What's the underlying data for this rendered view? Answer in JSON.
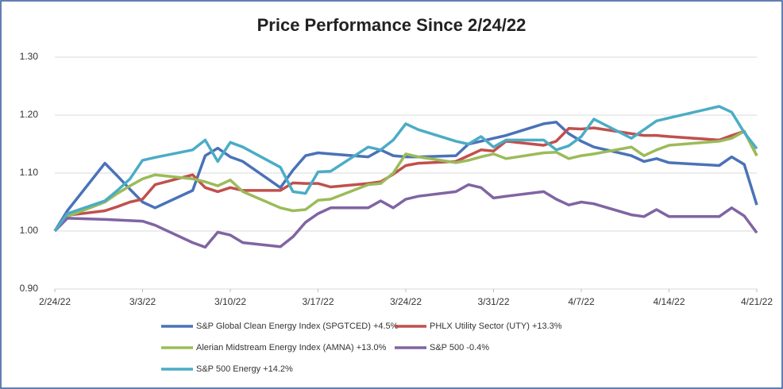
{
  "chart_data": {
    "type": "line",
    "title": "Price Performance Since 2/24/22",
    "x": [
      "2/24/22",
      "2/25/22",
      "2/28/22",
      "3/1/22",
      "3/2/22",
      "3/3/22",
      "3/4/22",
      "3/7/22",
      "3/8/22",
      "3/9/22",
      "3/10/22",
      "3/11/22",
      "3/14/22",
      "3/15/22",
      "3/16/22",
      "3/17/22",
      "3/18/22",
      "3/21/22",
      "3/22/22",
      "3/23/22",
      "3/24/22",
      "3/25/22",
      "3/28/22",
      "3/29/22",
      "3/30/22",
      "3/31/22",
      "4/1/22",
      "4/4/22",
      "4/5/22",
      "4/6/22",
      "4/7/22",
      "4/8/22",
      "4/11/22",
      "4/12/22",
      "4/13/22",
      "4/14/22",
      "4/18/22",
      "4/19/22",
      "4/20/22",
      "4/21/22"
    ],
    "xlim": [
      "2/24/22",
      "4/21/22"
    ],
    "xticks": [
      "2/24/22",
      "3/3/22",
      "3/10/22",
      "3/17/22",
      "3/24/22",
      "3/31/22",
      "4/7/22",
      "4/14/22",
      "4/21/22"
    ],
    "ylim": [
      0.9,
      1.3
    ],
    "yticks": [
      {
        "value": 0.9,
        "label": "0.90"
      },
      {
        "value": 1.0,
        "label": "1.00"
      },
      {
        "value": 1.1,
        "label": "1.10"
      },
      {
        "value": 1.2,
        "label": "1.20"
      },
      {
        "value": 1.3,
        "label": "1.30"
      }
    ],
    "grid": true,
    "legend": "bottom",
    "series": [
      {
        "name": "S&P Global Clean Energy Index (SPGTCED) +4.5%",
        "color": "#4a72b8",
        "values": [
          1.0,
          1.035,
          1.117,
          1.095,
          1.072,
          1.05,
          1.04,
          1.07,
          1.13,
          1.143,
          1.128,
          1.12,
          1.075,
          1.105,
          1.13,
          1.135,
          1.133,
          1.128,
          1.14,
          1.13,
          1.128,
          1.128,
          1.13,
          1.15,
          1.155,
          1.16,
          1.165,
          1.185,
          1.188,
          1.168,
          1.155,
          1.145,
          1.13,
          1.12,
          1.125,
          1.118,
          1.113,
          1.128,
          1.115,
          1.045
        ]
      },
      {
        "name": "PHLX Utility Sector (UTY) +13.3%",
        "color": "#c0504d",
        "values": [
          1.0,
          1.027,
          1.035,
          1.042,
          1.05,
          1.055,
          1.08,
          1.097,
          1.075,
          1.068,
          1.075,
          1.07,
          1.07,
          1.083,
          1.082,
          1.082,
          1.076,
          1.082,
          1.085,
          1.098,
          1.113,
          1.117,
          1.12,
          1.13,
          1.14,
          1.138,
          1.155,
          1.148,
          1.155,
          1.177,
          1.176,
          1.178,
          1.168,
          1.165,
          1.165,
          1.163,
          1.157,
          1.165,
          1.172,
          1.13
        ]
      },
      {
        "name": "Alerian Midstream Energy Index (AMNA) +13.0%",
        "color": "#9bbb59",
        "values": [
          1.0,
          1.025,
          1.05,
          1.065,
          1.078,
          1.09,
          1.097,
          1.09,
          1.085,
          1.078,
          1.088,
          1.068,
          1.04,
          1.035,
          1.037,
          1.053,
          1.055,
          1.08,
          1.082,
          1.1,
          1.133,
          1.128,
          1.118,
          1.122,
          1.128,
          1.133,
          1.125,
          1.135,
          1.136,
          1.125,
          1.13,
          1.133,
          1.145,
          1.13,
          1.14,
          1.148,
          1.155,
          1.16,
          1.172,
          1.13
        ]
      },
      {
        "name": "S&P 500 -0.4%",
        "color": "#8064a2",
        "values": [
          1.0,
          1.022,
          1.02,
          1.019,
          1.018,
          1.017,
          1.01,
          0.98,
          0.972,
          0.998,
          0.993,
          0.98,
          0.973,
          0.99,
          1.015,
          1.03,
          1.04,
          1.04,
          1.052,
          1.04,
          1.055,
          1.06,
          1.068,
          1.08,
          1.075,
          1.057,
          1.06,
          1.068,
          1.055,
          1.045,
          1.05,
          1.047,
          1.028,
          1.025,
          1.037,
          1.025,
          1.025,
          1.04,
          1.026,
          0.997
        ]
      },
      {
        "name": "S&P 500 Energy +14.2%",
        "color": "#4bacc6",
        "values": [
          1.0,
          1.03,
          1.052,
          1.07,
          1.09,
          1.122,
          1.127,
          1.14,
          1.157,
          1.12,
          1.153,
          1.145,
          1.11,
          1.068,
          1.065,
          1.102,
          1.103,
          1.145,
          1.14,
          1.157,
          1.185,
          1.175,
          1.155,
          1.15,
          1.163,
          1.145,
          1.157,
          1.157,
          1.14,
          1.147,
          1.163,
          1.193,
          1.16,
          1.175,
          1.19,
          1.195,
          1.215,
          1.205,
          1.17,
          1.142
        ]
      }
    ]
  }
}
